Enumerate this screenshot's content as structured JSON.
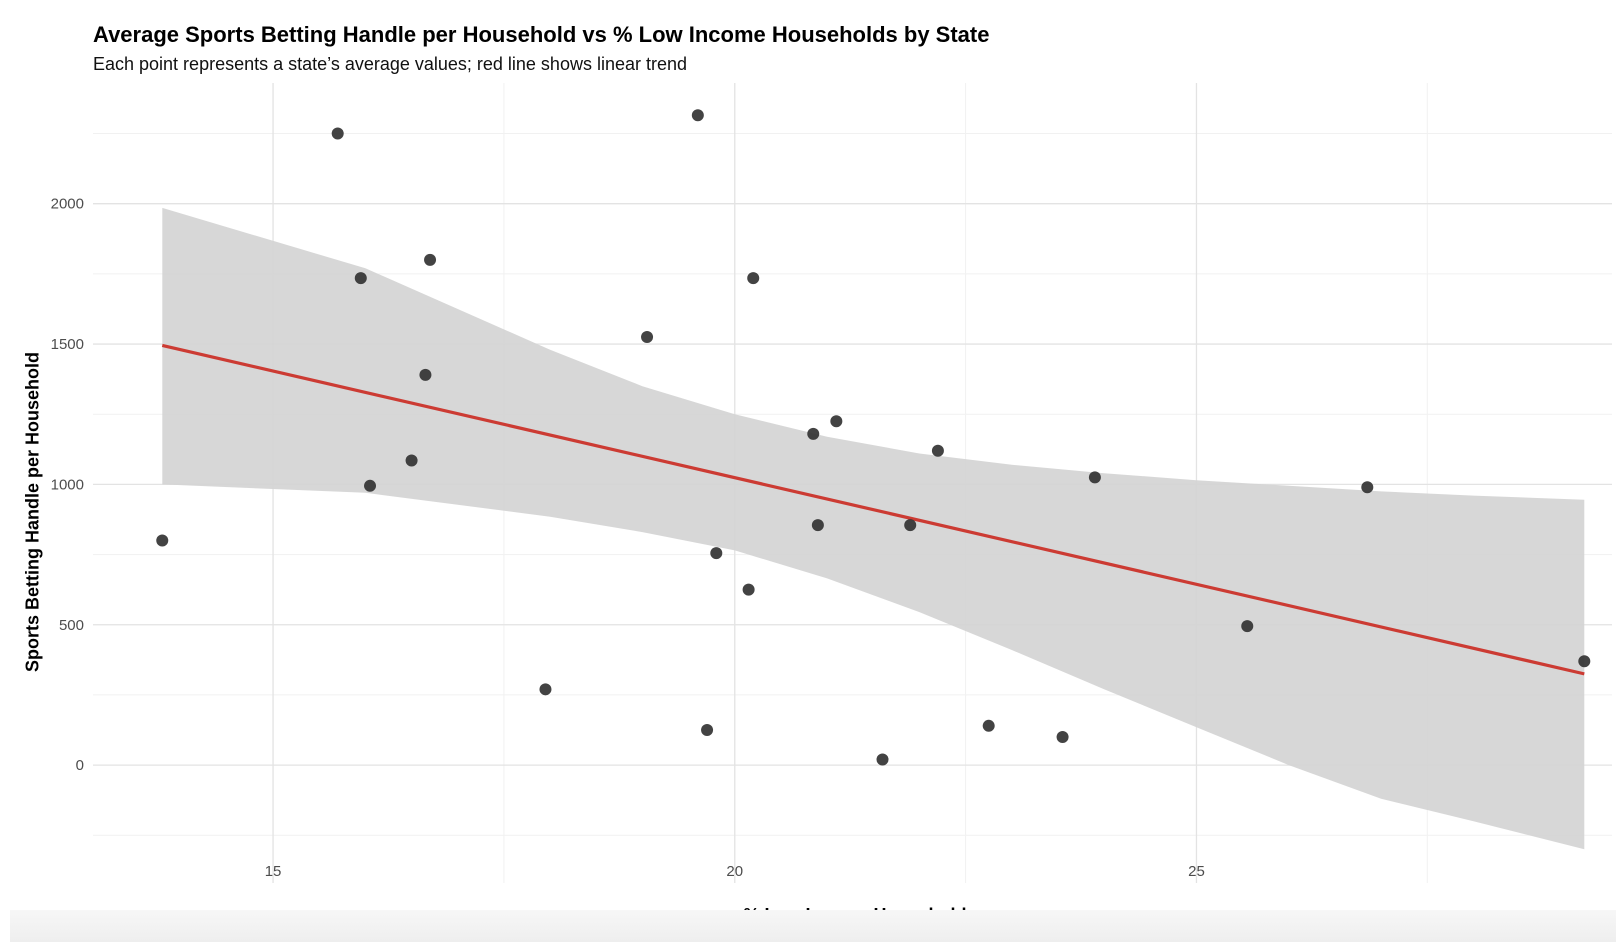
{
  "chart_data": {
    "type": "scatter",
    "title": "Average Sports Betting Handle per Household vs % Low Income Households by State",
    "subtitle": "Each point represents a state’s average values; red line shows linear trend",
    "xlabel": "% Low Income Households",
    "ylabel": "Sports Betting Handle per Household",
    "xlim": [
      13.05,
      29.5
    ],
    "ylim": [
      -420,
      2430
    ],
    "x_ticks": [
      15,
      20,
      25
    ],
    "y_ticks": [
      0,
      500,
      1000,
      1500,
      2000
    ],
    "grid": true,
    "points": [
      {
        "x": 13.8,
        "y": 800
      },
      {
        "x": 15.7,
        "y": 2250
      },
      {
        "x": 15.95,
        "y": 1735
      },
      {
        "x": 16.05,
        "y": 995
      },
      {
        "x": 16.5,
        "y": 1085
      },
      {
        "x": 16.65,
        "y": 1390
      },
      {
        "x": 16.7,
        "y": 1800
      },
      {
        "x": 17.95,
        "y": 270
      },
      {
        "x": 19.05,
        "y": 1525
      },
      {
        "x": 19.6,
        "y": 2315
      },
      {
        "x": 19.7,
        "y": 125
      },
      {
        "x": 19.8,
        "y": 755
      },
      {
        "x": 20.15,
        "y": 625
      },
      {
        "x": 20.2,
        "y": 1735
      },
      {
        "x": 20.85,
        "y": 1180
      },
      {
        "x": 20.9,
        "y": 855
      },
      {
        "x": 21.1,
        "y": 1225
      },
      {
        "x": 21.6,
        "y": 20
      },
      {
        "x": 21.9,
        "y": 855
      },
      {
        "x": 22.2,
        "y": 1120
      },
      {
        "x": 22.75,
        "y": 140
      },
      {
        "x": 23.55,
        "y": 100
      },
      {
        "x": 23.9,
        "y": 1025
      },
      {
        "x": 25.55,
        "y": 495
      },
      {
        "x": 26.85,
        "y": 990
      },
      {
        "x": 29.2,
        "y": 370
      }
    ],
    "trend_line": {
      "x": [
        13.8,
        29.2
      ],
      "y": [
        1495,
        325
      ]
    },
    "confidence_band": {
      "x": [
        13.8,
        16,
        18,
        19,
        20,
        21,
        22,
        23,
        24,
        25,
        26,
        27,
        28,
        29.2
      ],
      "upper": [
        1985,
        1770,
        1480,
        1350,
        1250,
        1170,
        1110,
        1070,
        1040,
        1015,
        995,
        975,
        960,
        945
      ],
      "lower": [
        1000,
        970,
        885,
        830,
        765,
        665,
        545,
        410,
        270,
        135,
        0,
        -120,
        -200,
        -300
      ]
    },
    "colors": {
      "point": "#333333",
      "trend": "#cc3b33",
      "band": "#d3d3d3",
      "grid_major": "#e3e3e3",
      "grid_minor": "#f1f1f1"
    }
  }
}
